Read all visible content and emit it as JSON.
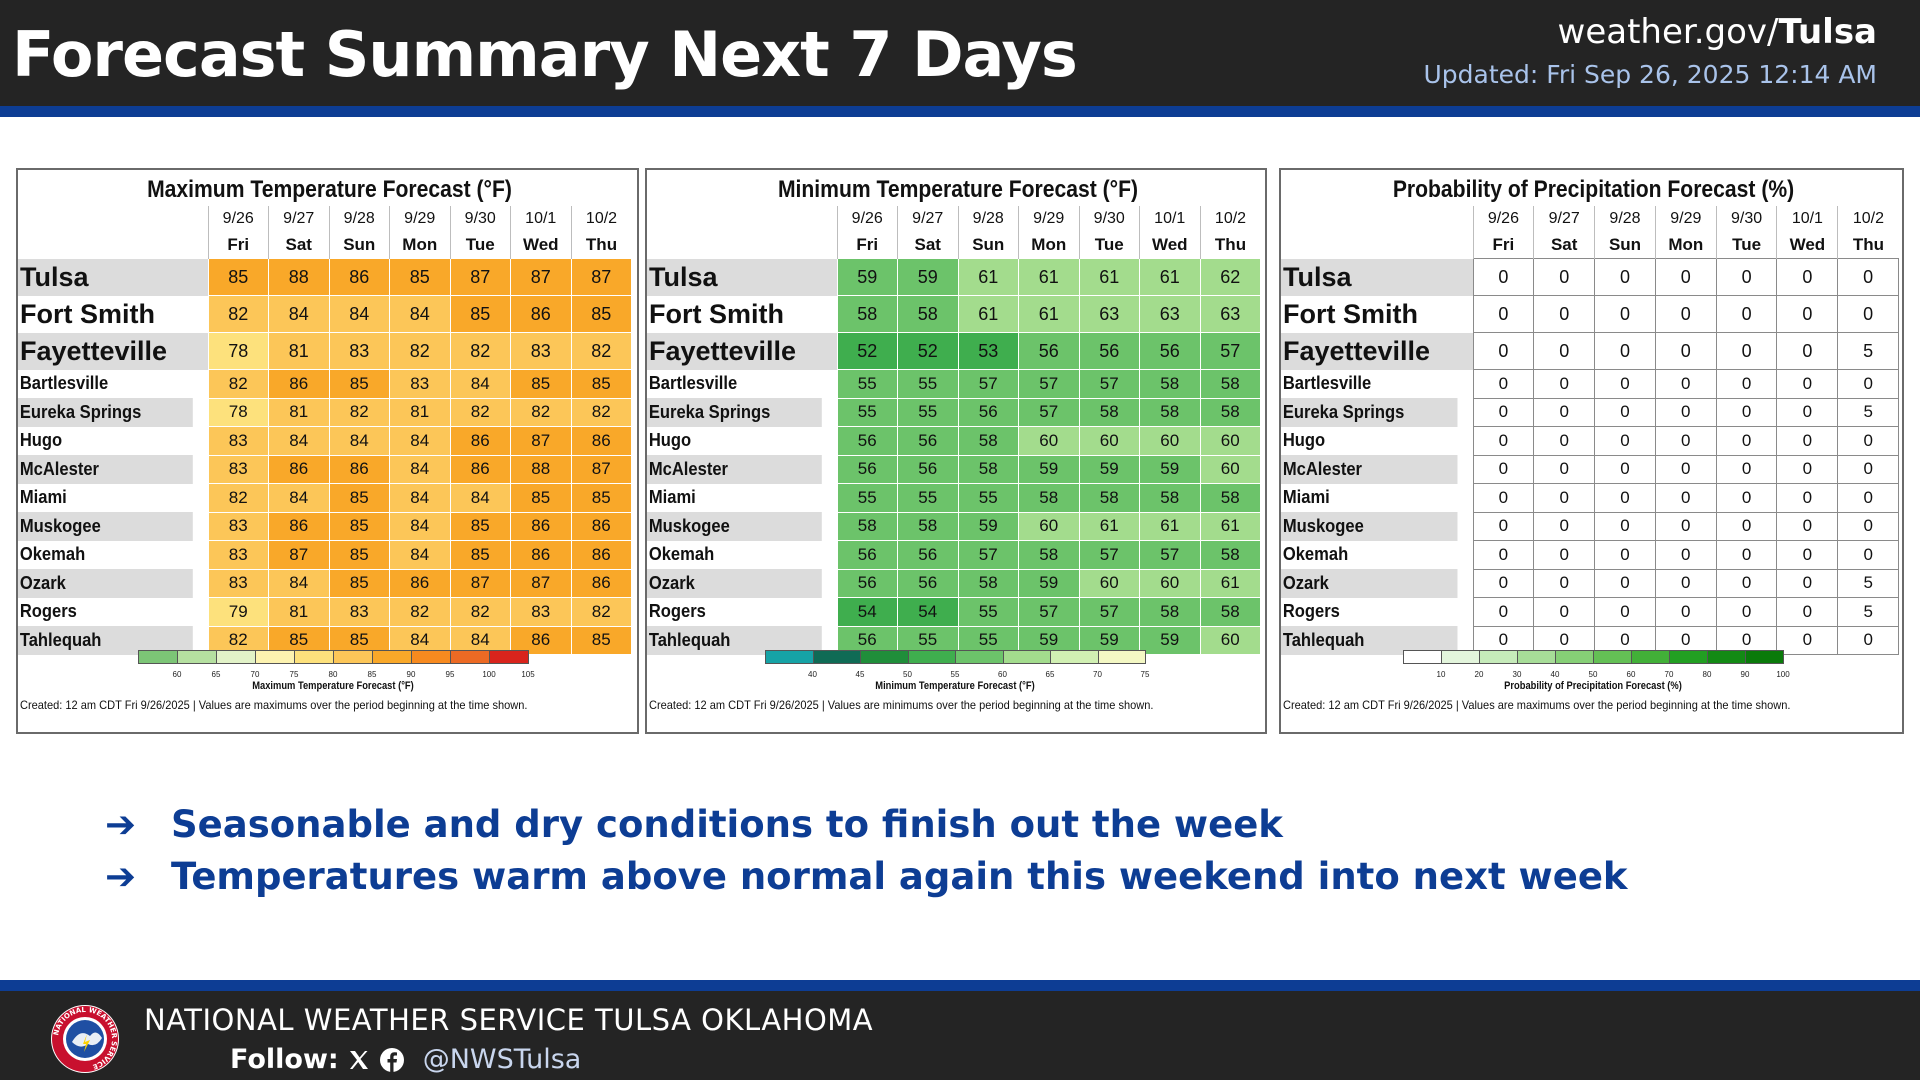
{
  "header": {
    "title": "Forecast Summary Next 7 Days",
    "site_prefix": "weather.gov/",
    "site_office": "Tulsa",
    "updated": "Updated: Fri Sep 26, 2025 12:14 AM"
  },
  "days": [
    {
      "date": "9/26",
      "dow": "Fri"
    },
    {
      "date": "9/27",
      "dow": "Sat"
    },
    {
      "date": "9/28",
      "dow": "Sun"
    },
    {
      "date": "9/29",
      "dow": "Mon"
    },
    {
      "date": "9/30",
      "dow": "Tue"
    },
    {
      "date": "10/1",
      "dow": "Wed"
    },
    {
      "date": "10/2",
      "dow": "Thu"
    }
  ],
  "cities": [
    "Tulsa",
    "Fort Smith",
    "Fayetteville",
    "Bartlesville",
    "Eureka Springs",
    "Hugo",
    "McAlester",
    "Miami",
    "Muskogee",
    "Okemah",
    "Ozark",
    "Rogers",
    "Tahlequah"
  ],
  "panels": [
    {
      "id": "max",
      "title": "Maximum Temperature Forecast (°F)",
      "legend_title": "Maximum Temperature Forecast (°F)",
      "legend_ticks": [
        "60",
        "65",
        "70",
        "75",
        "80",
        "85",
        "90",
        "95",
        "100",
        "105"
      ],
      "created": "Created: 12 am CDT Fri 9/26/2025  |  Values are maximums over the period beginning at the time shown.",
      "values": [
        [
          85,
          88,
          86,
          85,
          87,
          87,
          87
        ],
        [
          82,
          84,
          84,
          84,
          85,
          86,
          85
        ],
        [
          78,
          81,
          83,
          82,
          82,
          83,
          82
        ],
        [
          82,
          86,
          85,
          83,
          84,
          85,
          85
        ],
        [
          78,
          81,
          82,
          81,
          82,
          82,
          82
        ],
        [
          83,
          84,
          84,
          84,
          86,
          87,
          86
        ],
        [
          83,
          86,
          86,
          84,
          86,
          88,
          87
        ],
        [
          82,
          84,
          85,
          84,
          84,
          85,
          85
        ],
        [
          83,
          86,
          85,
          84,
          85,
          86,
          86
        ],
        [
          83,
          87,
          85,
          84,
          85,
          86,
          86
        ],
        [
          83,
          84,
          85,
          86,
          87,
          87,
          86
        ],
        [
          79,
          81,
          83,
          82,
          82,
          83,
          82
        ],
        [
          82,
          85,
          85,
          84,
          84,
          86,
          85
        ]
      ]
    },
    {
      "id": "min",
      "title": "Minimum Temperature Forecast (°F)",
      "legend_title": "Minimum Temperature Forecast (°F)",
      "legend_ticks": [
        "40",
        "45",
        "50",
        "55",
        "60",
        "65",
        "70",
        "75"
      ],
      "created": "Created: 12 am CDT Fri 9/26/2025  |  Values are minimums over the period beginning at the time shown.",
      "values": [
        [
          59,
          59,
          61,
          61,
          61,
          61,
          62
        ],
        [
          58,
          58,
          61,
          61,
          63,
          63,
          63
        ],
        [
          52,
          52,
          53,
          56,
          56,
          56,
          57
        ],
        [
          55,
          55,
          57,
          57,
          57,
          58,
          58
        ],
        [
          55,
          55,
          56,
          57,
          58,
          58,
          58
        ],
        [
          56,
          56,
          58,
          60,
          60,
          60,
          60
        ],
        [
          56,
          56,
          58,
          59,
          59,
          59,
          60
        ],
        [
          55,
          55,
          55,
          58,
          58,
          58,
          58
        ],
        [
          58,
          58,
          59,
          60,
          61,
          61,
          61
        ],
        [
          56,
          56,
          57,
          58,
          57,
          57,
          58
        ],
        [
          56,
          56,
          58,
          59,
          60,
          60,
          61
        ],
        [
          54,
          54,
          55,
          57,
          57,
          58,
          58
        ],
        [
          56,
          55,
          55,
          59,
          59,
          59,
          60
        ]
      ]
    },
    {
      "id": "pop",
      "title": "Probability of Precipitation Forecast (%)",
      "legend_title": "Probability of Precipitation Forecast (%)",
      "legend_ticks": [
        "10",
        "20",
        "30",
        "40",
        "50",
        "60",
        "70",
        "80",
        "90",
        "100"
      ],
      "created": "Created: 12 am CDT Fri 9/26/2025  |  Values are maximums over the period beginning at the time shown.",
      "values": [
        [
          0,
          0,
          0,
          0,
          0,
          0,
          0
        ],
        [
          0,
          0,
          0,
          0,
          0,
          0,
          0
        ],
        [
          0,
          0,
          0,
          0,
          0,
          0,
          5
        ],
        [
          0,
          0,
          0,
          0,
          0,
          0,
          0
        ],
        [
          0,
          0,
          0,
          0,
          0,
          0,
          5
        ],
        [
          0,
          0,
          0,
          0,
          0,
          0,
          0
        ],
        [
          0,
          0,
          0,
          0,
          0,
          0,
          0
        ],
        [
          0,
          0,
          0,
          0,
          0,
          0,
          0
        ],
        [
          0,
          0,
          0,
          0,
          0,
          0,
          0
        ],
        [
          0,
          0,
          0,
          0,
          0,
          0,
          0
        ],
        [
          0,
          0,
          0,
          0,
          0,
          0,
          5
        ],
        [
          0,
          0,
          0,
          0,
          0,
          0,
          5
        ],
        [
          0,
          0,
          0,
          0,
          0,
          0,
          0
        ]
      ]
    }
  ],
  "bullets": [
    "Seasonable and dry conditions to finish out the week",
    "Temperatures warm above normal again this weekend into next week"
  ],
  "footer": {
    "org": "NATIONAL WEATHER SERVICE TULSA OKLAHOMA",
    "follow_label": "Follow:",
    "handle": "@NWSTulsa",
    "logo_text": "NATIONAL WEATHER SERVICE"
  },
  "colors": {
    "header_bg": "#242424",
    "accent_blue": "#0d3d94",
    "max_palette": [
      "#7cc576",
      "#b5e0a0",
      "#e2f3c8",
      "#fdf3b0",
      "#fde17c",
      "#fcc658",
      "#f9a829",
      "#f78a1f",
      "#ec6a24",
      "#d9241c"
    ],
    "min_palette": [
      "#16a3a6",
      "#0f6b55",
      "#208e3a",
      "#3fae4e",
      "#6cc36a",
      "#a3dc8d",
      "#d1f0b3",
      "#f4f8c4"
    ],
    "pop_palette": [
      "#ffffff",
      "#e3f5dc",
      "#c6ebba",
      "#a7dd98",
      "#86cf76",
      "#64c055",
      "#42b038",
      "#229f22",
      "#138a14",
      "#0a7a0a"
    ]
  }
}
